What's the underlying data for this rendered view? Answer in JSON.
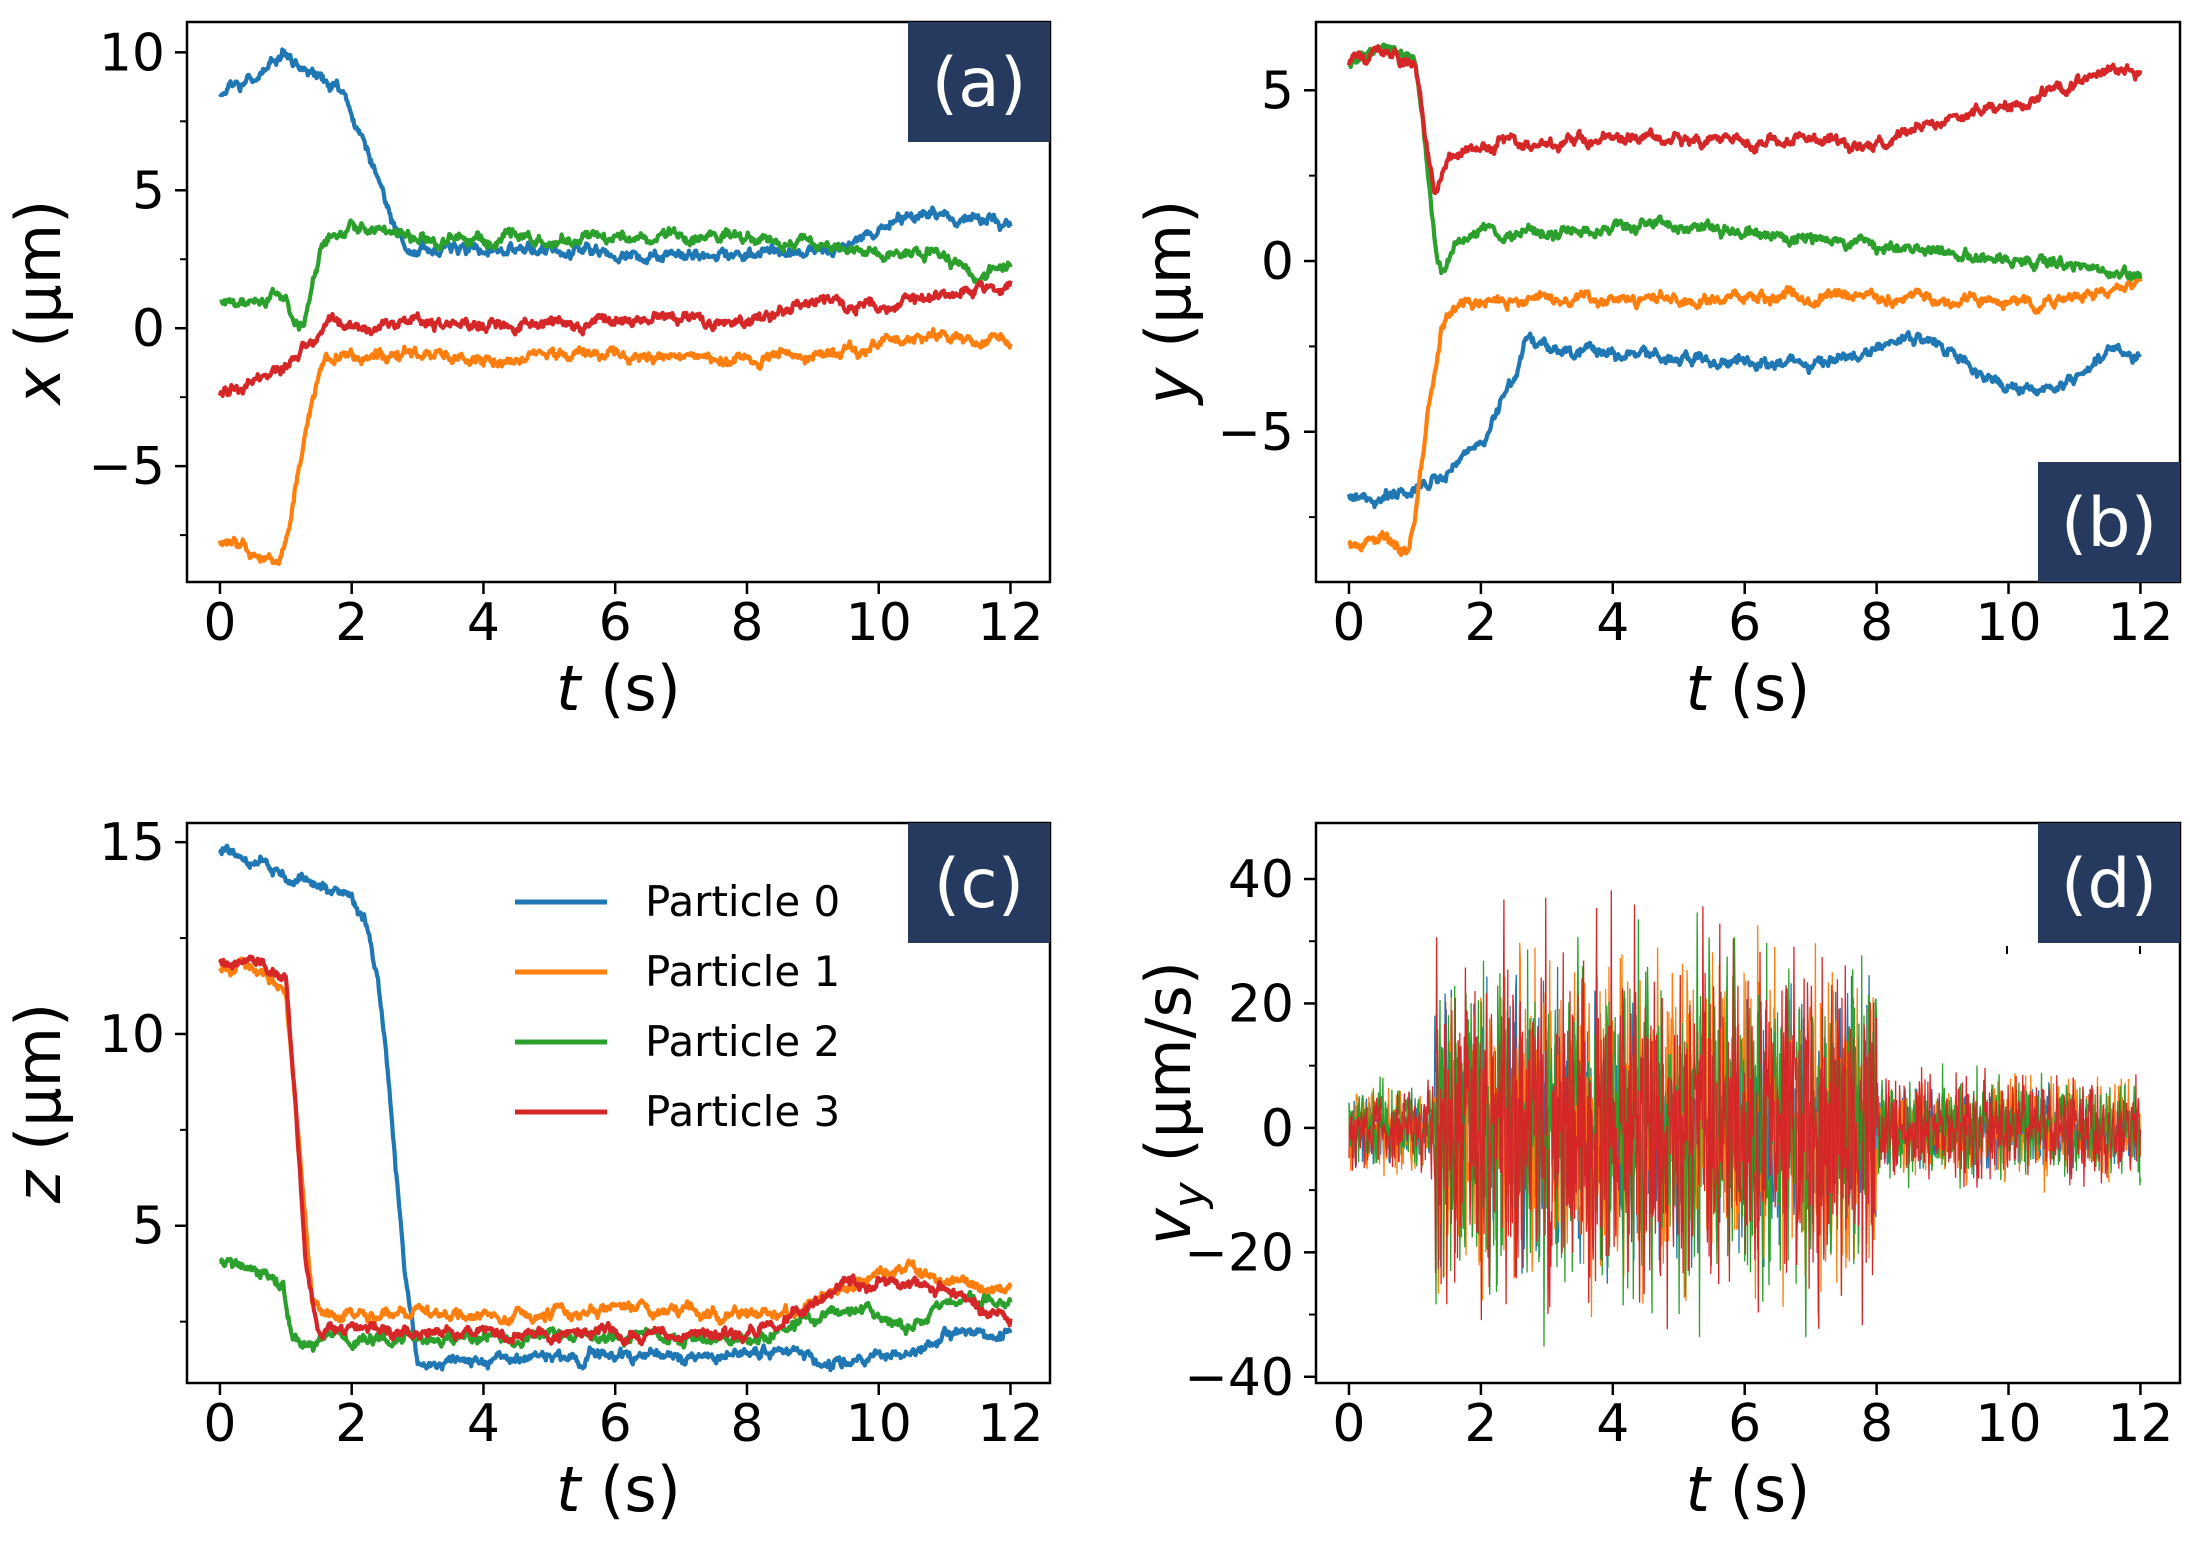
{
  "figure": {
    "colors": {
      "particle_0": "#1f77b4",
      "particle_1": "#ff7f0e",
      "particle_2": "#2ca02c",
      "particle_3": "#d62728",
      "panel_label_bg": "#253a5e",
      "panel_label_fg": "#ffffff"
    }
  },
  "chart_data": [
    {
      "id": "a",
      "type": "line",
      "panel_label": "(a)",
      "xlabel_var": "t",
      "xlabel_unit": "(s)",
      "ylabel_var": "x",
      "ylabel_unit": "(μm)",
      "xlim": [
        -0.5,
        12.6
      ],
      "ylim": [
        -9.2,
        11.1
      ],
      "xticks": [
        0,
        2,
        4,
        6,
        8,
        10,
        12
      ],
      "xtick_labels": [
        "0",
        "2",
        "4",
        "6",
        "8",
        "10",
        "12"
      ],
      "yticks": [
        -5,
        0,
        5,
        10
      ],
      "ytick_labels": [
        "−5",
        "0",
        "5",
        "10"
      ],
      "yminor": [
        -7.5,
        -2.5,
        2.5,
        7.5
      ],
      "series": [
        {
          "name": "Particle 0",
          "x": [
            0,
            0.5,
            0.95,
            1.3,
            1.8,
            2.2,
            2.6,
            2.8,
            4,
            6,
            7.5,
            8,
            8.5,
            9,
            9.5,
            10,
            10.5,
            10.8,
            11.2,
            11.6,
            12
          ],
          "y": [
            8.4,
            9.0,
            10.1,
            9.4,
            8.8,
            6.8,
            4.0,
            2.9,
            2.8,
            2.7,
            2.6,
            2.6,
            2.8,
            2.6,
            2.9,
            3.5,
            3.9,
            4.3,
            3.8,
            3.9,
            3.7
          ]
        },
        {
          "name": "Particle 1",
          "x": [
            0,
            0.5,
            0.9,
            1.05,
            1.2,
            1.4,
            1.6,
            2,
            3,
            4,
            6,
            8,
            9,
            10,
            11,
            12
          ],
          "y": [
            -7.8,
            -8.1,
            -8.6,
            -7.5,
            -5.0,
            -2.5,
            -1.0,
            -0.9,
            -1.0,
            -1.1,
            -1.0,
            -1.1,
            -0.9,
            -0.5,
            -0.3,
            -0.5
          ]
        },
        {
          "name": "Particle 2",
          "x": [
            0,
            0.5,
            0.9,
            1.1,
            1.25,
            1.4,
            1.55,
            2,
            3,
            4,
            6,
            8,
            9,
            10,
            10.5,
            11,
            11.5,
            12
          ],
          "y": [
            1.0,
            1.0,
            1.3,
            0.5,
            0.1,
            1.5,
            3.2,
            3.6,
            3.3,
            3.2,
            3.3,
            3.3,
            3.0,
            2.8,
            2.7,
            2.6,
            1.8,
            2.5
          ]
        },
        {
          "name": "Particle 3",
          "x": [
            0,
            0.5,
            1.0,
            1.3,
            1.5,
            1.7,
            2,
            3,
            4,
            5,
            6,
            7,
            8,
            8.5,
            9,
            9.3,
            10,
            10.5,
            11,
            12
          ],
          "y": [
            -2.3,
            -2.0,
            -1.3,
            -0.5,
            -0.1,
            0.3,
            0.0,
            0.2,
            0.1,
            0.2,
            0.3,
            0.3,
            0.2,
            0.6,
            1.0,
            0.9,
            0.8,
            1.0,
            1.2,
            1.5
          ]
        }
      ]
    },
    {
      "id": "b",
      "type": "line",
      "panel_label": "(b)",
      "xlabel_var": "t",
      "xlabel_unit": "(s)",
      "ylabel_var": "y",
      "ylabel_unit": "(μm)",
      "xlim": [
        -0.5,
        12.6
      ],
      "ylim": [
        -9.4,
        7.0
      ],
      "xticks": [
        0,
        2,
        4,
        6,
        8,
        10,
        12
      ],
      "xtick_labels": [
        "0",
        "2",
        "4",
        "6",
        "8",
        "10",
        "12"
      ],
      "yticks": [
        -5,
        0,
        5
      ],
      "ytick_labels": [
        "−5",
        "0",
        "5"
      ],
      "yminor": [
        -7.5,
        -2.5,
        2.5
      ],
      "series": [
        {
          "name": "Particle 0",
          "x": [
            0,
            0.5,
            1.0,
            1.5,
            2.0,
            2.5,
            2.7,
            3,
            4,
            5,
            6,
            7,
            8,
            8.8,
            9.5,
            10,
            10.4,
            11,
            11.5,
            12
          ],
          "y": [
            -6.9,
            -6.9,
            -6.8,
            -6.2,
            -5.2,
            -3.5,
            -2.3,
            -2.6,
            -2.7,
            -2.8,
            -2.9,
            -3.0,
            -2.6,
            -2.2,
            -3.2,
            -3.6,
            -3.9,
            -3.6,
            -2.6,
            -2.7
          ]
        },
        {
          "name": "Particle 1",
          "x": [
            0,
            0.5,
            0.9,
            1.0,
            1.2,
            1.4,
            1.6,
            2,
            3,
            4,
            6,
            8,
            10,
            10.5,
            11,
            12
          ],
          "y": [
            -8.3,
            -8.0,
            -8.6,
            -7.5,
            -4.5,
            -1.8,
            -1.3,
            -1.2,
            -1.1,
            -1.2,
            -1.1,
            -1.0,
            -1.2,
            -1.3,
            -1.1,
            -0.7
          ]
        },
        {
          "name": "Particle 2",
          "x": [
            0,
            0.5,
            1.0,
            1.15,
            1.3,
            1.4,
            1.6,
            2,
            3,
            4,
            5,
            6,
            7,
            8,
            9,
            10,
            11,
            11.5,
            12
          ],
          "y": [
            5.8,
            6.1,
            5.9,
            3.5,
            0.5,
            -0.3,
            0.5,
            0.9,
            0.8,
            1.0,
            1.1,
            0.8,
            0.7,
            0.4,
            0.3,
            0.1,
            -0.1,
            -0.4,
            -0.5
          ]
        },
        {
          "name": "Particle 3",
          "x": [
            0,
            0.5,
            1.0,
            1.15,
            1.3,
            1.5,
            2,
            3,
            4,
            6,
            7,
            8,
            8.5,
            9,
            10,
            10.5,
            11,
            11.5,
            12
          ],
          "y": [
            5.7,
            6.2,
            5.8,
            3.8,
            2.1,
            3.0,
            3.4,
            3.5,
            3.6,
            3.5,
            3.5,
            3.5,
            3.8,
            4.1,
            4.6,
            4.9,
            5.2,
            5.6,
            5.6
          ]
        }
      ]
    },
    {
      "id": "c",
      "type": "line",
      "panel_label": "(c)",
      "xlabel_var": "t",
      "xlabel_unit": "(s)",
      "ylabel_var": "z",
      "ylabel_unit": "(μm)",
      "xlim": [
        -0.5,
        12.6
      ],
      "ylim": [
        0.9,
        15.5
      ],
      "xticks": [
        0,
        2,
        4,
        6,
        8,
        10,
        12
      ],
      "xtick_labels": [
        "0",
        "2",
        "4",
        "6",
        "8",
        "10",
        "12"
      ],
      "yticks": [
        5,
        10,
        15
      ],
      "ytick_labels": [
        "5",
        "10",
        "15"
      ],
      "yminor": [
        2.5,
        7.5,
        12.5
      ],
      "legend": {
        "placement": "upper-center",
        "entries": [
          "Particle 0",
          "Particle 1",
          "Particle 2",
          "Particle 3"
        ]
      },
      "series": [
        {
          "name": "Particle 0",
          "x": [
            0,
            0.3,
            0.6,
            1.0,
            1.5,
            2.0,
            2.2,
            2.4,
            2.6,
            2.8,
            3.0,
            4,
            6,
            8,
            8.5,
            9,
            9.5,
            10,
            10.5,
            11,
            12
          ],
          "y": [
            14.8,
            14.6,
            14.4,
            14.1,
            13.9,
            13.6,
            13.0,
            11.5,
            8.0,
            4.0,
            1.5,
            1.5,
            1.6,
            1.6,
            1.8,
            1.5,
            1.4,
            1.5,
            1.8,
            2.2,
            2.2
          ]
        },
        {
          "name": "Particle 1",
          "x": [
            0,
            0.5,
            1.0,
            1.2,
            1.4,
            1.6,
            2,
            4,
            6,
            8,
            8.5,
            9,
            9.5,
            10,
            10.5,
            11,
            12
          ],
          "y": [
            11.8,
            11.7,
            11.2,
            7.0,
            3.0,
            2.7,
            2.7,
            2.7,
            2.8,
            2.7,
            2.8,
            3.1,
            3.4,
            3.7,
            3.9,
            3.5,
            3.4
          ]
        },
        {
          "name": "Particle 2",
          "x": [
            0,
            0.5,
            0.95,
            1.1,
            1.3,
            1.6,
            2,
            4,
            6,
            8,
            8.5,
            9,
            9.5,
            10,
            10.5,
            11,
            11.5,
            12
          ],
          "y": [
            4.1,
            4.0,
            3.5,
            2.2,
            1.9,
            2.0,
            2.0,
            2.1,
            2.1,
            2.0,
            2.3,
            2.6,
            2.9,
            2.6,
            2.4,
            3.0,
            3.1,
            3.0
          ]
        },
        {
          "name": "Particle 3",
          "x": [
            0,
            0.5,
            1.0,
            1.15,
            1.3,
            1.5,
            2,
            4,
            6,
            8,
            8.5,
            9,
            9.5,
            10,
            10.5,
            11,
            11.5,
            12
          ],
          "y": [
            11.9,
            11.9,
            11.4,
            8.0,
            4.0,
            2.2,
            2.2,
            2.2,
            2.2,
            2.2,
            2.5,
            3.0,
            3.5,
            3.6,
            3.5,
            3.4,
            2.8,
            2.6
          ]
        }
      ]
    },
    {
      "id": "d",
      "type": "line",
      "panel_label": "(d)",
      "xlabel_var": "t",
      "xlabel_unit": "(s)",
      "ylabel_var": "v",
      "ylabel_sub": "y",
      "ylabel_unit": "(μm/s)",
      "xlim": [
        -0.5,
        12.6
      ],
      "ylim": [
        -41,
        49
      ],
      "xticks": [
        0,
        2,
        4,
        6,
        8,
        10,
        12
      ],
      "xtick_labels": [
        "0",
        "2",
        "4",
        "6",
        "8",
        "10",
        "12"
      ],
      "yticks": [
        -40,
        -20,
        0,
        20,
        40
      ],
      "ytick_labels": [
        "−40",
        "−20",
        "0",
        "20",
        "40"
      ],
      "yminor": [
        -30,
        -10,
        10,
        30
      ],
      "segments": [
        {
          "x_range": [
            0,
            1.3
          ],
          "spread": 10
        },
        {
          "x_range": [
            1.3,
            8.0
          ],
          "spread": 40
        },
        {
          "x_range": [
            8.0,
            12
          ],
          "spread": 12
        }
      ],
      "series": [
        {
          "name": "Particle 0",
          "amplitude": 0.75
        },
        {
          "name": "Particle 1",
          "amplitude": 0.9
        },
        {
          "name": "Particle 2",
          "amplitude": 0.95
        },
        {
          "name": "Particle 3",
          "amplitude": 1.0
        }
      ]
    }
  ]
}
